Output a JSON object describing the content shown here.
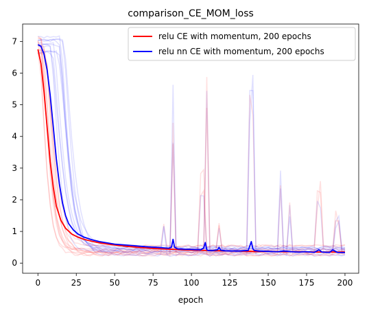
{
  "chart_data": {
    "type": "line",
    "title": "comparison_CE_MOM_loss",
    "xlabel": "epoch",
    "ylabel": "",
    "xlim": [
      -9.95,
      208.95
    ],
    "ylim": [
      -0.32,
      7.55
    ],
    "xticks": [
      0,
      25,
      50,
      75,
      100,
      125,
      150,
      175,
      200
    ],
    "yticks": [
      0,
      1,
      2,
      3,
      4,
      5,
      6,
      7
    ],
    "grid": false,
    "legend_position": "top-right",
    "series": [
      {
        "name": "relu CE with momentum, 200 epochs",
        "color": "#ff0000",
        "x": [
          0,
          2,
          4,
          6,
          8,
          10,
          12,
          15,
          18,
          22,
          26,
          30,
          35,
          40,
          50,
          60,
          70,
          80,
          90,
          100,
          110,
          120,
          130,
          140,
          150,
          160,
          170,
          180,
          190,
          200
        ],
        "y": [
          6.75,
          6.3,
          5.4,
          4.3,
          3.2,
          2.4,
          1.8,
          1.35,
          1.1,
          0.92,
          0.82,
          0.75,
          0.69,
          0.64,
          0.57,
          0.52,
          0.48,
          0.45,
          0.43,
          0.41,
          0.4,
          0.39,
          0.38,
          0.37,
          0.37,
          0.36,
          0.36,
          0.35,
          0.35,
          0.35
        ]
      },
      {
        "name": "relu nn CE with momentum, 200 epochs",
        "color": "#0000ff",
        "x": [
          0,
          2,
          4,
          6,
          8,
          10,
          12,
          14,
          16,
          18,
          20,
          23,
          26,
          30,
          35,
          40,
          50,
          60,
          70,
          80,
          85,
          87,
          88,
          89,
          91,
          95,
          100,
          106,
          108,
          109,
          110,
          111,
          114,
          117,
          118,
          119,
          122,
          130,
          137,
          139,
          140,
          141,
          144,
          150,
          156,
          160,
          165,
          170,
          175,
          180,
          183,
          185,
          190,
          192,
          195,
          200
        ],
        "y": [
          6.9,
          6.85,
          6.6,
          6.1,
          5.3,
          4.3,
          3.3,
          2.5,
          1.9,
          1.5,
          1.25,
          1.05,
          0.92,
          0.82,
          0.74,
          0.68,
          0.6,
          0.56,
          0.52,
          0.49,
          0.47,
          0.5,
          0.75,
          0.5,
          0.45,
          0.44,
          0.43,
          0.42,
          0.48,
          0.65,
          0.42,
          0.4,
          0.4,
          0.42,
          0.5,
          0.41,
          0.39,
          0.38,
          0.4,
          0.68,
          0.45,
          0.4,
          0.38,
          0.37,
          0.36,
          0.38,
          0.36,
          0.35,
          0.36,
          0.34,
          0.42,
          0.35,
          0.34,
          0.42,
          0.34,
          0.33
        ]
      }
    ]
  }
}
